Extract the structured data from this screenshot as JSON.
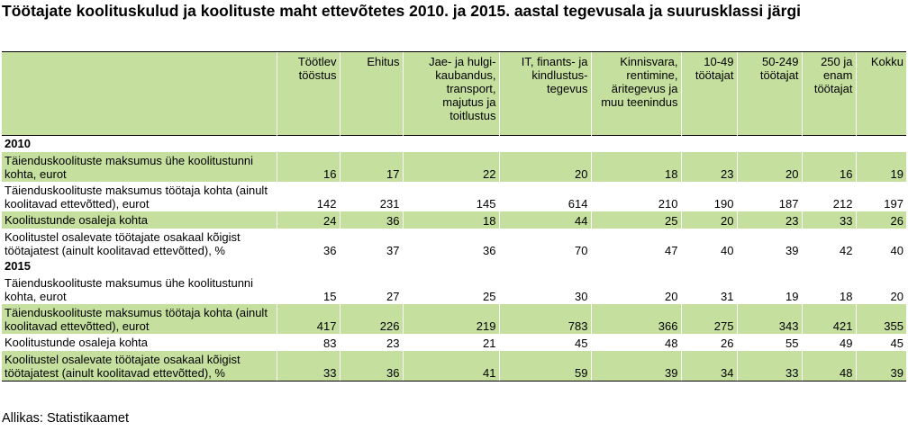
{
  "chart_data": {
    "type": "table",
    "title": "Töötajate koolituskulud ja koolituste maht ettevõtetes 2010. ja 2015. aastal tegevusala ja suurusklassi järgi",
    "columns": [
      "Töötlev tööstus",
      "Ehitus",
      "Jae- ja hulgi-kaubandus, transport, majutus ja toitlustus",
      "IT, finants- ja kindlustus-tegevus",
      "Kinnisvara, rentimine, äritegevus ja muu teenindus",
      "10-49 töötajat",
      "50-249 töötajat",
      "250 ja enam töötajat",
      "Kokku"
    ],
    "groups": [
      {
        "year": "2010",
        "rows": [
          {
            "label": "Täienduskoolituste maksumus ühe koolitustunni kohta, eurot",
            "values": [
              16,
              17,
              22,
              20,
              18,
              23,
              20,
              16,
              19
            ]
          },
          {
            "label": "Täienduskoolituste maksumus  töötaja kohta (ainult koolitavad ettevõtted), eurot",
            "values": [
              142,
              231,
              145,
              614,
              210,
              190,
              187,
              212,
              197
            ]
          },
          {
            "label": "Koolitustunde osaleja kohta",
            "values": [
              24,
              36,
              18,
              44,
              25,
              20,
              23,
              33,
              26
            ]
          },
          {
            "label": "Koolitustel osalevate töötajate osakaal kõigist töötajatest (ainult koolitavad ettevõtted), %",
            "values": [
              36,
              37,
              36,
              70,
              47,
              40,
              39,
              42,
              40
            ]
          }
        ]
      },
      {
        "year": "2015",
        "rows": [
          {
            "label": "Täienduskoolituste maksumus ühe koolitustunni kohta, eurot",
            "values": [
              15,
              27,
              25,
              30,
              20,
              31,
              19,
              18,
              20
            ]
          },
          {
            "label": "Täienduskoolituste maksumus töötaja kohta (ainult koolitavad ettevõtted), eurot",
            "values": [
              417,
              226,
              219,
              783,
              366,
              275,
              343,
              421,
              355
            ]
          },
          {
            "label": "Koolitustunde osaleja kohta",
            "values": [
              83,
              23,
              21,
              45,
              48,
              26,
              55,
              49,
              45
            ]
          },
          {
            "label": "Koolitustel osalevate töötajate osakaal kõigist töötajatest (ainult koolitavad ettevõtted), %",
            "values": [
              33,
              36,
              41,
              59,
              39,
              34,
              33,
              48,
              39
            ]
          }
        ]
      }
    ],
    "source": "Allikas: Statistikaamet",
    "colors": {
      "band": "#c5df9f",
      "text": "#000000",
      "background": "#ffffff"
    }
  }
}
